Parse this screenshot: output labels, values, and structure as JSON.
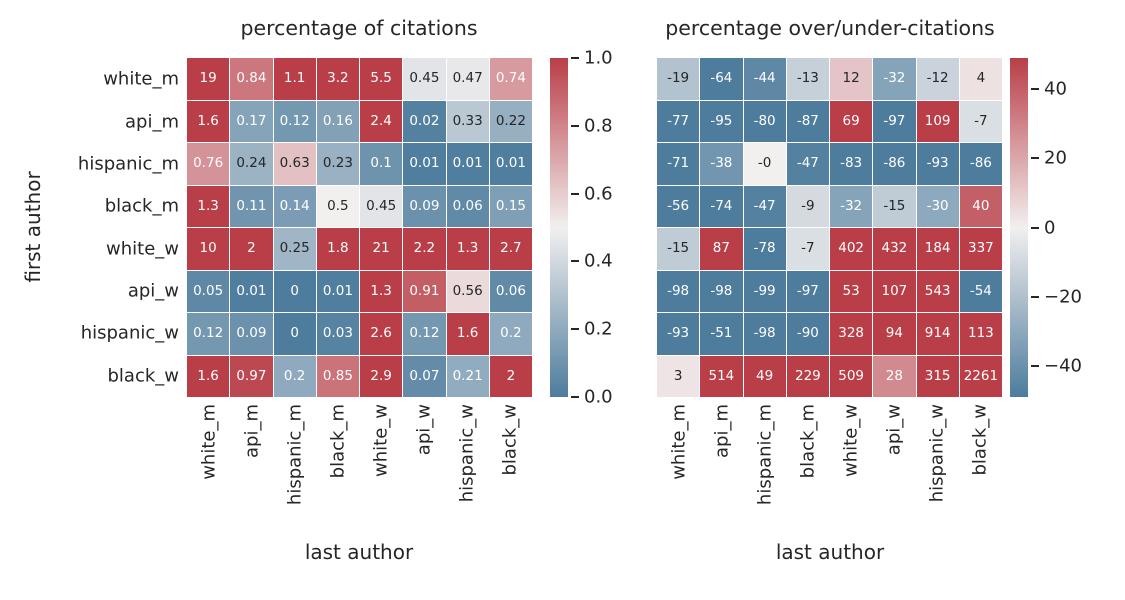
{
  "colormap": {
    "low": "#4d7c9d",
    "mid": "#f2efef",
    "high": "#b93e47",
    "annotation_dark": "#262626",
    "annotation_light": "#ffffff",
    "gridline": "#ffffff"
  },
  "chart_data": [
    {
      "type": "heatmap",
      "title": "percentage of citations",
      "xlabel": "last author",
      "ylabel": "first author",
      "x_tick_labels": [
        "white_m",
        "api_m",
        "hispanic_m",
        "black_m",
        "white_w",
        "api_w",
        "hispanic_w",
        "black_w"
      ],
      "y_tick_labels": [
        "white_m",
        "api_m",
        "hispanic_m",
        "black_m",
        "white_w",
        "api_w",
        "hispanic_w",
        "black_w"
      ],
      "vmin": 0,
      "vmax": 1,
      "colorbar_ticks": [
        {
          "label": "1.0",
          "value": 1.0
        },
        {
          "label": "0.8",
          "value": 0.8
        },
        {
          "label": "0.6",
          "value": 0.6
        },
        {
          "label": "0.4",
          "value": 0.4
        },
        {
          "label": "0.2",
          "value": 0.2
        },
        {
          "label": "0.0",
          "value": 0.0
        }
      ],
      "cells": [
        [
          "19",
          "0.84",
          "1.1",
          "3.2",
          "5.5",
          "0.45",
          "0.47",
          "0.74"
        ],
        [
          "1.6",
          "0.17",
          "0.12",
          "0.16",
          "2.4",
          "0.02",
          "0.33",
          "0.22"
        ],
        [
          "0.76",
          "0.24",
          "0.63",
          "0.23",
          "0.1",
          "0.01",
          "0.01",
          "0.01"
        ],
        [
          "1.3",
          "0.11",
          "0.14",
          "0.5",
          "0.45",
          "0.09",
          "0.06",
          "0.15"
        ],
        [
          "10",
          "2",
          "0.25",
          "1.8",
          "21",
          "2.2",
          "1.3",
          "2.7"
        ],
        [
          "0.05",
          "0.01",
          "0",
          "0.01",
          "1.3",
          "0.91",
          "0.56",
          "0.06"
        ],
        [
          "0.12",
          "0.09",
          "0",
          "0.03",
          "2.6",
          "0.12",
          "1.6",
          "0.2"
        ],
        [
          "1.6",
          "0.97",
          "0.2",
          "0.85",
          "2.9",
          "0.07",
          "0.21",
          "2"
        ]
      ]
    },
    {
      "type": "heatmap",
      "title": "percentage over/under-citations",
      "xlabel": "last author",
      "ylabel": "",
      "x_tick_labels": [
        "white_m",
        "api_m",
        "hispanic_m",
        "black_m",
        "white_w",
        "api_w",
        "hispanic_w",
        "black_w"
      ],
      "vmin": -49,
      "vmax": 49,
      "colorbar_ticks": [
        {
          "label": "40",
          "value": 40
        },
        {
          "label": "20",
          "value": 20
        },
        {
          "label": "0",
          "value": 0
        },
        {
          "label": "−20",
          "value": -20
        },
        {
          "label": "−40",
          "value": -40
        }
      ],
      "cells": [
        [
          "-19",
          "-64",
          "-44",
          "-13",
          "12",
          "-32",
          "-12",
          "4"
        ],
        [
          "-77",
          "-95",
          "-80",
          "-87",
          "69",
          "-97",
          "109",
          "-7"
        ],
        [
          "-71",
          "-38",
          "-0",
          "-47",
          "-83",
          "-86",
          "-93",
          "-86"
        ],
        [
          "-56",
          "-74",
          "-47",
          "-9",
          "-32",
          "-15",
          "-30",
          "40"
        ],
        [
          "-15",
          "87",
          "-78",
          "-7",
          "402",
          "432",
          "184",
          "337"
        ],
        [
          "-98",
          "-98",
          "-99",
          "-97",
          "53",
          "107",
          "543",
          "-54"
        ],
        [
          "-93",
          "-51",
          "-98",
          "-90",
          "328",
          "94",
          "914",
          "113"
        ],
        [
          "3",
          "514",
          "49",
          "229",
          "509",
          "28",
          "315",
          "2261"
        ]
      ]
    }
  ]
}
